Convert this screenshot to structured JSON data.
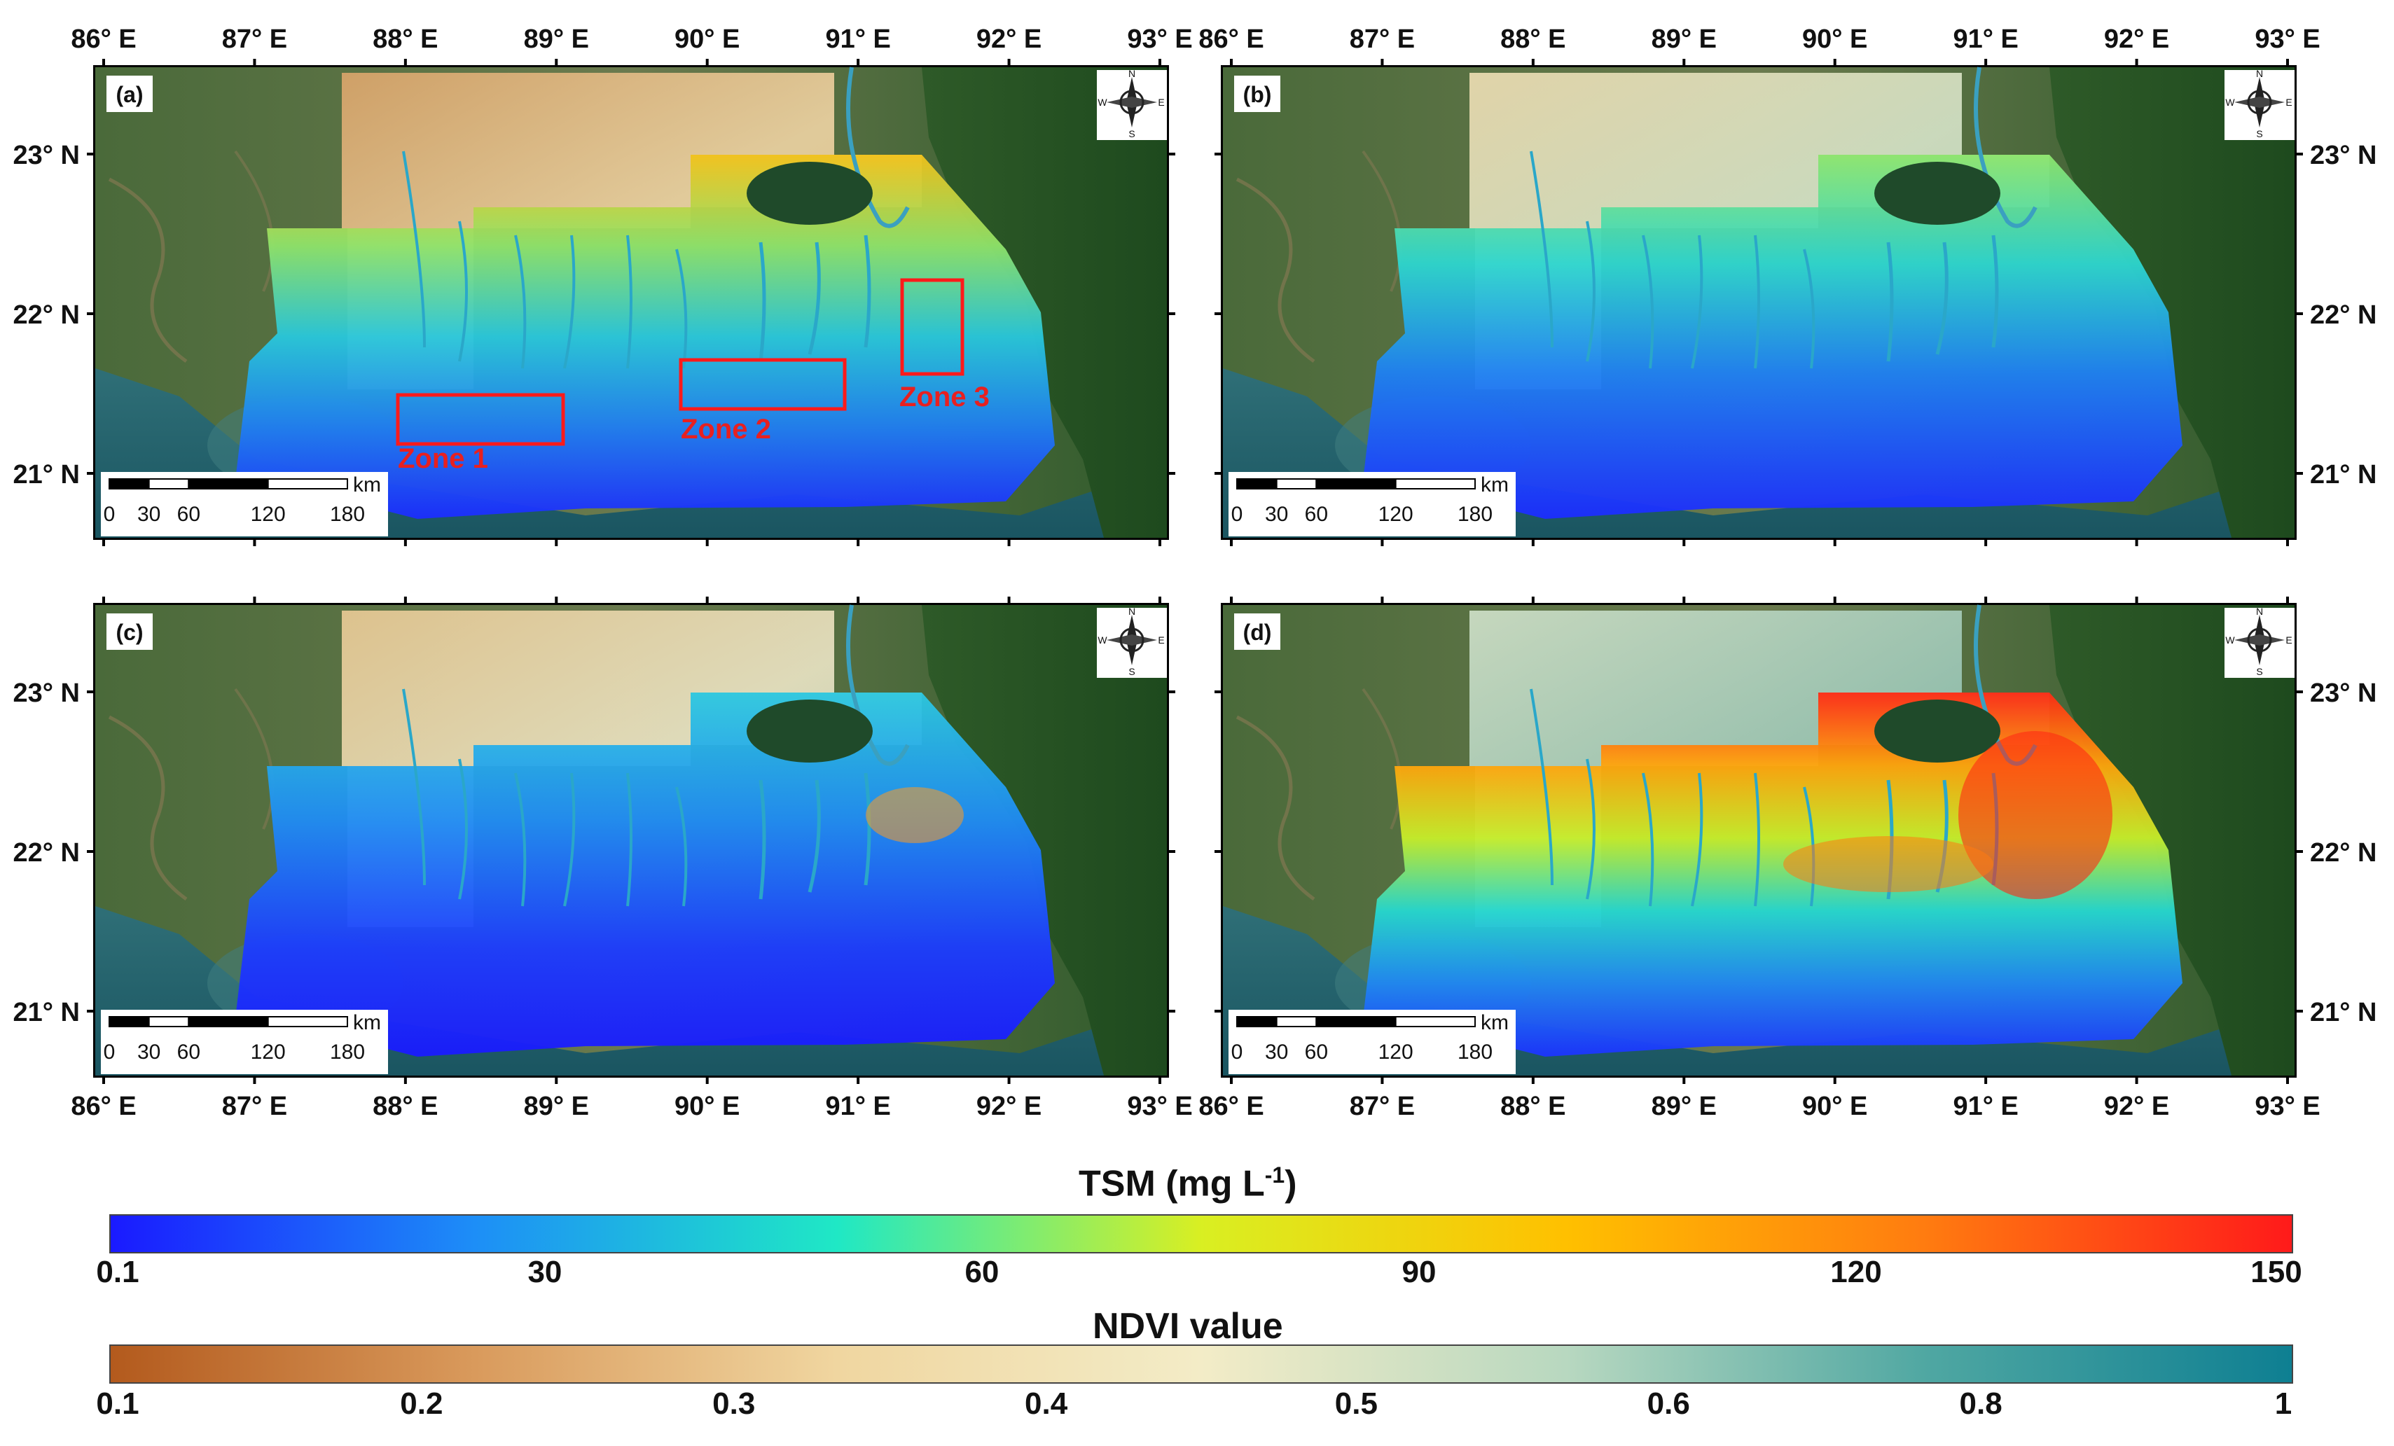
{
  "panels": [
    {
      "label": "(a)",
      "zones": [
        "Zone 1",
        "Zone 2",
        "Zone 3"
      ],
      "water_tone": "moderate",
      "land_tone": "low"
    },
    {
      "label": "(b)",
      "zones": [],
      "water_tone": "low",
      "land_tone": "mid"
    },
    {
      "label": "(c)",
      "zones": [],
      "water_tone": "verylow",
      "land_tone": "mixed"
    },
    {
      "label": "(d)",
      "zones": [],
      "water_tone": "high",
      "land_tone": "high"
    }
  ],
  "axes": {
    "lon_top": [
      "86° E",
      "87° E",
      "88° E",
      "89° E",
      "90° E",
      "91° E",
      "92° E",
      "93° E"
    ],
    "lon_bottom": [
      "86° E",
      "87° E",
      "88° E",
      "89° E",
      "90° E",
      "91° E",
      "92° E",
      "93° E"
    ],
    "lat_left": [
      "23° N",
      "22° N",
      "21° N"
    ],
    "lat_right": [
      "23° N",
      "22° N",
      "21° N"
    ],
    "lon_range": [
      86,
      93
    ],
    "lat_values": [
      23,
      22,
      21
    ]
  },
  "scalebar": {
    "unit": "km",
    "ticks": [
      "0",
      "30",
      "60",
      "120",
      "180"
    ],
    "tick_values": [
      0,
      30,
      60,
      120,
      180
    ]
  },
  "compass": {
    "n": "N",
    "s": "S",
    "e": "E",
    "w": "W"
  },
  "tsm_colorbar": {
    "title": "TSM (mg L",
    "title_sup": "-1",
    "title_end": ")",
    "ticks": [
      "0.1",
      "30",
      "60",
      "90",
      "120",
      "150"
    ],
    "tick_values": [
      0.1,
      30,
      60,
      90,
      120,
      150
    ],
    "range": [
      0.1,
      150
    ],
    "colors": [
      "#1a1aff",
      "#1d8ef7",
      "#1fe8c5",
      "#d9ef22",
      "#ffc000",
      "#ff7b10",
      "#ff1a1a"
    ]
  },
  "ndvi_colorbar": {
    "title": "NDVI value",
    "ticks": [
      "0.1",
      "0.2",
      "0.3",
      "0.4",
      "0.5",
      "0.6",
      "0.8",
      "1"
    ],
    "range": [
      0.1,
      1
    ],
    "colors": [
      "#b35a1d",
      "#d99a5c",
      "#f0d6a0",
      "#f3ecc7",
      "#b8d8c0",
      "#4fa7a2",
      "#0e7f92"
    ]
  }
}
